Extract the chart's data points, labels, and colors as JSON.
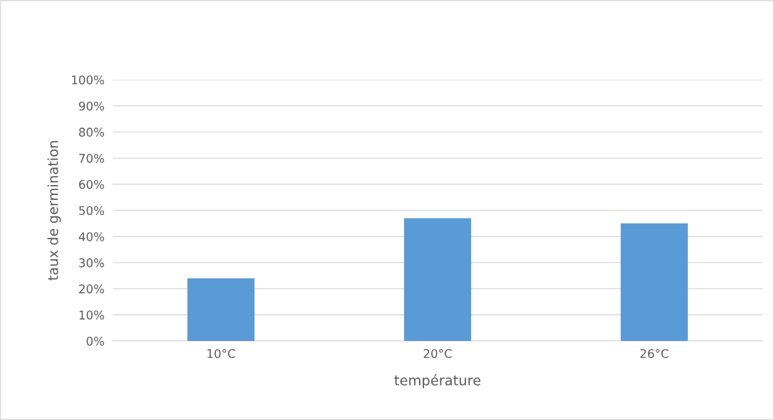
{
  "chart_data": {
    "type": "bar",
    "xlabel": "température",
    "ylabel": "taux de germination",
    "categories": [
      "10°C",
      "20°C",
      "26°C"
    ],
    "values": [
      24,
      47,
      45
    ],
    "color": "#5b9bd5",
    "ylim": [
      0,
      100
    ],
    "yticks": [
      {
        "value": 0,
        "label": "0%"
      },
      {
        "value": 10,
        "label": "10%"
      },
      {
        "value": 20,
        "label": "20%"
      },
      {
        "value": 30,
        "label": "30%"
      },
      {
        "value": 40,
        "label": "40%"
      },
      {
        "value": 50,
        "label": "50%"
      },
      {
        "value": 60,
        "label": "60%"
      },
      {
        "value": 70,
        "label": "70%"
      },
      {
        "value": 80,
        "label": "80%"
      },
      {
        "value": 90,
        "label": "90%"
      },
      {
        "value": 100,
        "label": "100%"
      }
    ],
    "grid": "y",
    "legend": false
  }
}
